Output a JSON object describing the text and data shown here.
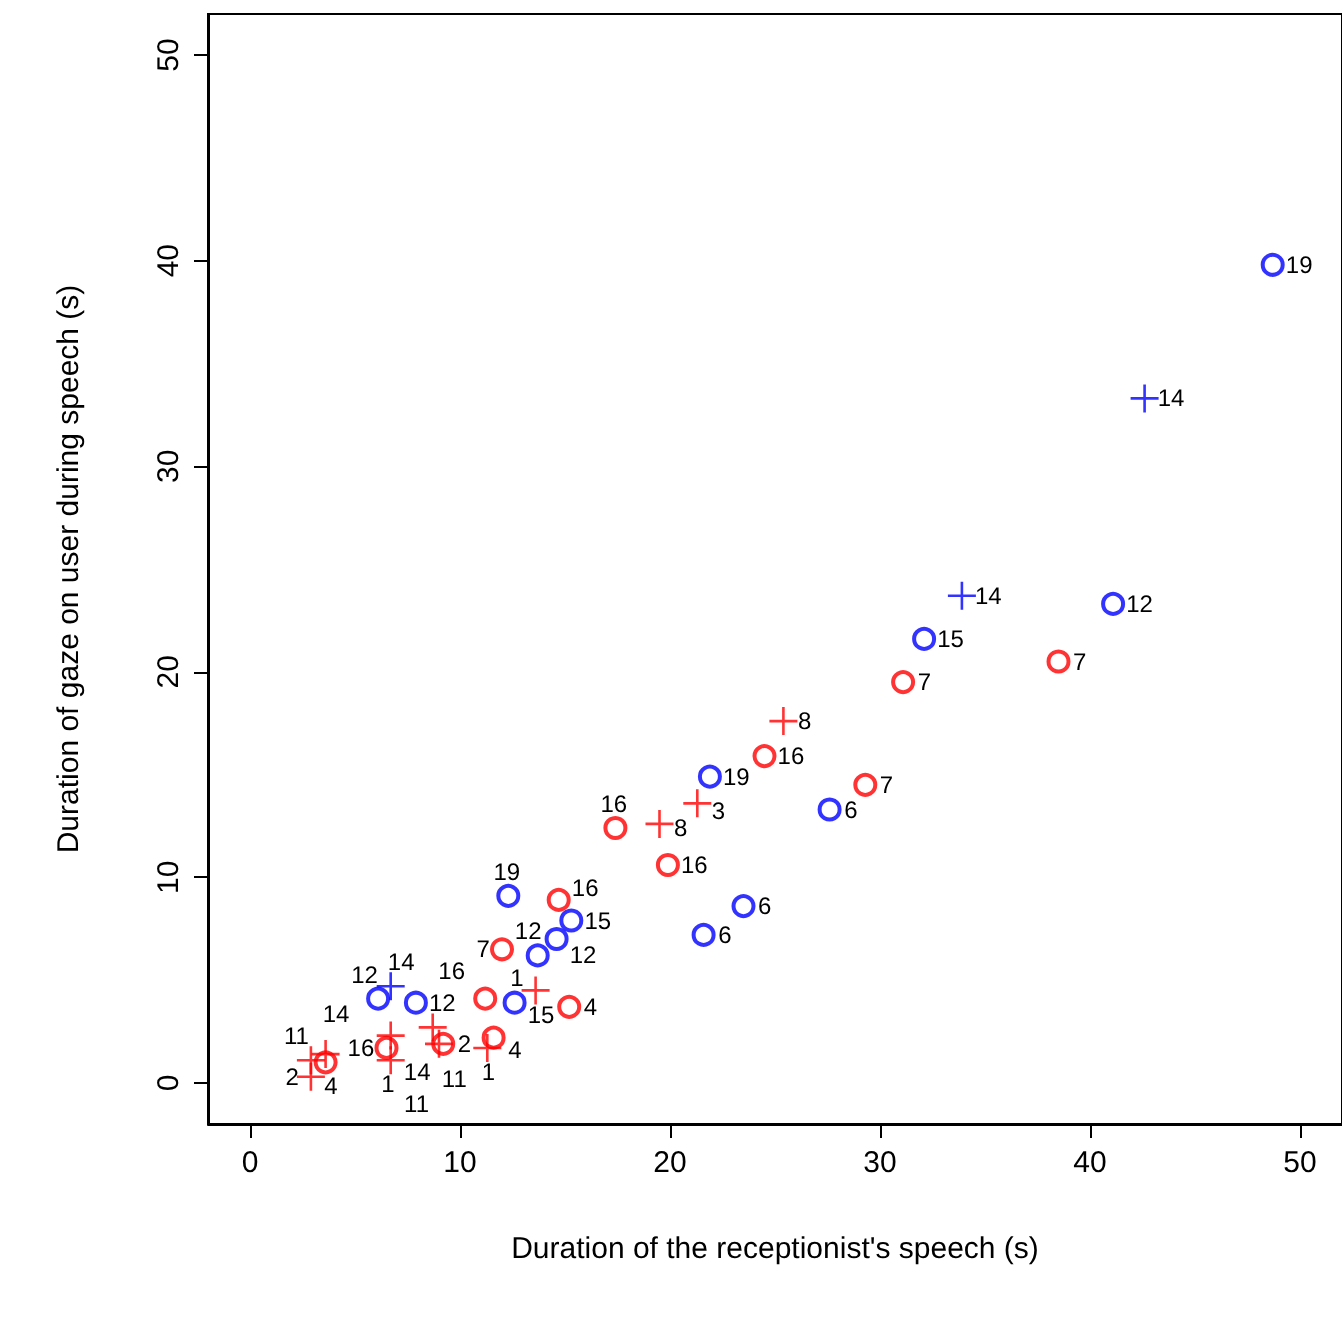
{
  "chart_data": {
    "type": "scatter",
    "xlabel": "Duration of the receptionist's speech (s)",
    "ylabel": "Duration of gaze on user during speech (s)",
    "xlim": [
      -2,
      52
    ],
    "ylim": [
      -2,
      52
    ],
    "xticks": [
      0,
      10,
      20,
      30,
      40,
      50
    ],
    "yticks": [
      0,
      10,
      20,
      30,
      40,
      50
    ],
    "series": [
      {
        "color": "#0000ff",
        "marker": "circle",
        "x": [
          48.7,
          41.1,
          32.1,
          27.6,
          21.9,
          23.5,
          21.6,
          12.3,
          15.3,
          14.6,
          13.7,
          6.1,
          7.9,
          12.6
        ],
        "values": [
          39.8,
          23.3,
          21.6,
          13.3,
          14.9,
          8.6,
          7.2,
          9.1,
          7.9,
          7.0,
          6.2,
          4.1,
          3.9,
          3.9
        ]
      },
      {
        "color": "#ff0000",
        "marker": "circle",
        "x": [
          38.5,
          31.1,
          29.3,
          24.5,
          17.4,
          19.9,
          14.7,
          12.0,
          11.2,
          15.2,
          11.6,
          9.2,
          6.5,
          3.6
        ],
        "values": [
          20.5,
          19.5,
          14.5,
          15.9,
          12.4,
          10.6,
          8.9,
          6.5,
          4.1,
          3.7,
          2.2,
          1.9,
          1.7,
          1.0
        ]
      },
      {
        "color": "#0000ff",
        "marker": "cross",
        "x": [
          42.6,
          33.9,
          6.7
        ],
        "values": [
          33.3,
          23.7,
          4.7
        ]
      },
      {
        "color": "#ff0000",
        "marker": "cross",
        "x": [
          25.4,
          21.3,
          19.5,
          13.6,
          11.3,
          6.7,
          8.7,
          9.0,
          6.7,
          2.9,
          3.6,
          2.9
        ],
        "values": [
          17.6,
          13.6,
          12.6,
          4.5,
          1.7,
          2.3,
          2.7,
          1.9,
          1.1,
          1.1,
          1.4,
          0.3
        ]
      }
    ],
    "annotations": [
      {
        "text": "19",
        "x": 48.7,
        "y": 39.8
      },
      {
        "text": "12",
        "x": 41.1,
        "y": 23.3
      },
      {
        "text": "15",
        "x": 32.1,
        "y": 21.6
      },
      {
        "text": "6",
        "x": 27.6,
        "y": 13.3
      },
      {
        "text": "19",
        "x": 21.9,
        "y": 14.9
      },
      {
        "text": "6",
        "x": 23.5,
        "y": 8.6
      },
      {
        "text": "6",
        "x": 21.6,
        "y": 7.2
      },
      {
        "text": "19",
        "x": 12.3,
        "y": 9.1
      },
      {
        "text": "15",
        "x": 15.3,
        "y": 7.9
      },
      {
        "text": "12",
        "x": 14.6,
        "y": 7.0
      },
      {
        "text": "12",
        "x": 13.7,
        "y": 6.2
      },
      {
        "text": "12",
        "x": 6.1,
        "y": 4.1
      },
      {
        "text": "12",
        "x": 7.9,
        "y": 3.9
      },
      {
        "text": "15",
        "x": 12.6,
        "y": 3.9
      },
      {
        "text": "7",
        "x": 38.5,
        "y": 20.5
      },
      {
        "text": "7",
        "x": 31.1,
        "y": 19.5
      },
      {
        "text": "7",
        "x": 29.3,
        "y": 14.5
      },
      {
        "text": "16",
        "x": 24.5,
        "y": 15.9
      },
      {
        "text": "16",
        "x": 17.4,
        "y": 12.4
      },
      {
        "text": "16",
        "x": 19.9,
        "y": 10.6
      },
      {
        "text": "16",
        "x": 14.7,
        "y": 8.9
      },
      {
        "text": "7",
        "x": 12.0,
        "y": 6.5
      },
      {
        "text": "16",
        "x": 11.2,
        "y": 4.1
      },
      {
        "text": "4",
        "x": 15.2,
        "y": 3.7
      },
      {
        "text": "4",
        "x": 11.6,
        "y": 2.2
      },
      {
        "text": "2",
        "x": 9.2,
        "y": 1.9
      },
      {
        "text": "16",
        "x": 6.5,
        "y": 1.7
      },
      {
        "text": "4",
        "x": 3.6,
        "y": 1.0
      },
      {
        "text": "14",
        "x": 42.6,
        "y": 33.3
      },
      {
        "text": "14",
        "x": 33.9,
        "y": 23.7
      },
      {
        "text": "14",
        "x": 6.7,
        "y": 4.7
      },
      {
        "text": "8",
        "x": 25.4,
        "y": 17.6
      },
      {
        "text": "3",
        "x": 21.3,
        "y": 13.6
      },
      {
        "text": "8",
        "x": 19.5,
        "y": 12.6
      },
      {
        "text": "1",
        "x": 13.6,
        "y": 4.5
      },
      {
        "text": "1",
        "x": 11.3,
        "y": 1.7
      },
      {
        "text": "14",
        "x": 6.7,
        "y": 2.3
      },
      {
        "text": "11",
        "x": 8.7,
        "y": 2.7
      },
      {
        "text": "11",
        "x": 9.0,
        "y": 1.9
      },
      {
        "text": "1",
        "x": 6.7,
        "y": 1.1
      },
      {
        "text": "11",
        "x": 2.9,
        "y": 1.1
      },
      {
        "text": "14",
        "x": 3.6,
        "y": 1.4
      },
      {
        "text": "2",
        "x": 2.9,
        "y": 0.3
      }
    ]
  }
}
